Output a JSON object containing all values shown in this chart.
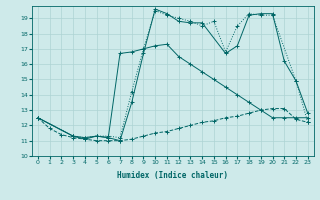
{
  "xlabel": "Humidex (Indice chaleur)",
  "bg_color": "#ceeaea",
  "grid_color": "#aed4d4",
  "line_color": "#006666",
  "xlim": [
    -0.5,
    23.5
  ],
  "ylim": [
    10,
    19.8
  ],
  "yticks": [
    10,
    11,
    12,
    13,
    14,
    15,
    16,
    17,
    18,
    19
  ],
  "xticks": [
    0,
    1,
    2,
    3,
    4,
    5,
    6,
    7,
    8,
    9,
    10,
    11,
    12,
    13,
    14,
    15,
    16,
    17,
    18,
    19,
    20,
    21,
    22,
    23
  ],
  "line1_x": [
    0,
    1,
    2,
    3,
    4,
    5,
    6,
    7,
    8,
    9,
    10,
    11,
    12,
    13,
    14,
    15,
    16,
    17,
    18,
    19,
    20,
    21,
    22,
    23
  ],
  "line1_y": [
    12.5,
    11.8,
    11.4,
    11.2,
    11.1,
    11.0,
    11.0,
    11.0,
    11.1,
    11.3,
    11.5,
    11.6,
    11.8,
    12.0,
    12.2,
    12.3,
    12.5,
    12.6,
    12.8,
    13.0,
    13.1,
    13.1,
    12.4,
    12.2
  ],
  "line1_style": "--",
  "line2_x": [
    0,
    3,
    4,
    5,
    6,
    7,
    8,
    9,
    10,
    11,
    12,
    13,
    14,
    15,
    16,
    17,
    18,
    19,
    20,
    21,
    22,
    23
  ],
  "line2_y": [
    12.5,
    11.3,
    11.2,
    11.3,
    11.2,
    16.7,
    16.8,
    17.0,
    17.2,
    17.3,
    16.5,
    16.0,
    15.5,
    15.0,
    14.5,
    14.0,
    13.5,
    13.0,
    12.5,
    12.5,
    12.5,
    12.5
  ],
  "line2_style": "-",
  "line3_x": [
    0,
    3,
    4,
    5,
    6,
    7,
    8,
    9,
    10,
    11,
    12,
    13,
    14,
    15,
    16,
    17,
    18,
    19,
    20,
    22,
    23
  ],
  "line3_y": [
    12.5,
    11.3,
    11.2,
    11.3,
    11.3,
    11.2,
    14.2,
    17.0,
    19.5,
    19.2,
    19.0,
    18.8,
    18.5,
    18.8,
    16.8,
    18.5,
    19.3,
    19.2,
    19.2,
    14.9,
    12.2
  ],
  "line3_style": ":",
  "line4_x": [
    0,
    3,
    4,
    5,
    6,
    7,
    8,
    9,
    10,
    11,
    12,
    13,
    14,
    16,
    17,
    18,
    19,
    20,
    21,
    22,
    23
  ],
  "line4_y": [
    12.5,
    11.3,
    11.1,
    11.3,
    11.2,
    11.0,
    13.5,
    16.7,
    19.6,
    19.3,
    18.8,
    18.7,
    18.7,
    16.7,
    17.2,
    19.2,
    19.3,
    19.3,
    16.2,
    14.9,
    12.8
  ],
  "line4_style": "-"
}
